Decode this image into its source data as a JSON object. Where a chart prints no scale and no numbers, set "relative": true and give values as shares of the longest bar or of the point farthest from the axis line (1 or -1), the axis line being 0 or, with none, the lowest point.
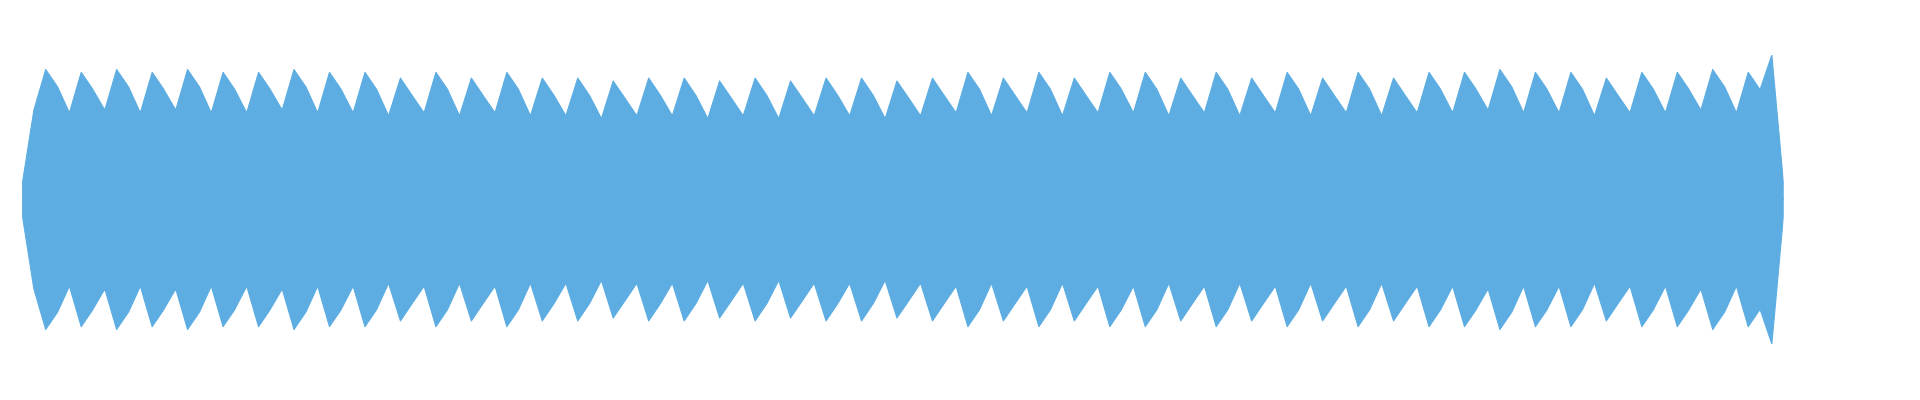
{
  "chart_data": {
    "type": "area",
    "relative": true,
    "ref_lines": [
      {
        "axis": "y",
        "value": 0,
        "color": "#5dade2"
      }
    ],
    "categories": [
      null,
      null,
      null,
      null,
      null,
      null,
      null,
      null,
      null,
      null,
      null,
      null,
      null,
      null,
      null,
      null,
      null,
      null,
      null,
      null,
      null,
      null,
      null,
      null,
      null,
      null,
      null,
      null,
      null,
      null,
      null,
      null,
      null,
      null,
      null,
      null,
      null,
      null,
      null,
      null,
      null,
      null,
      null,
      null,
      null,
      null,
      null,
      null,
      null,
      null,
      null,
      null,
      null,
      null,
      null,
      null,
      null,
      null,
      null,
      null,
      null,
      null,
      null,
      null,
      null,
      null,
      null,
      null,
      null,
      null,
      null,
      null,
      null,
      null,
      null,
      null,
      null,
      null,
      null,
      null,
      null,
      null,
      null,
      null,
      null,
      null,
      null,
      null,
      null,
      null,
      null,
      null,
      null,
      null,
      null,
      null,
      null,
      null,
      null,
      null,
      null,
      null,
      null,
      null,
      null,
      null,
      null,
      null,
      null,
      null,
      null,
      null,
      null,
      null,
      null,
      null,
      null,
      null,
      null,
      null,
      null,
      null,
      null,
      null,
      null,
      null,
      null,
      null,
      null,
      null,
      null,
      null,
      null,
      null,
      null,
      null,
      null,
      null,
      null,
      null,
      null,
      null,
      null,
      null,
      null,
      null,
      null,
      null,
      null,
      null
    ],
    "series": [
      {
        "color": "#5dade2",
        "values": [
          0.1,
          0.62,
          0.9,
          0.78,
          0.6,
          0.88,
          0.76,
          0.62,
          0.9,
          0.78,
          0.6,
          0.88,
          0.76,
          0.62,
          0.9,
          0.78,
          0.6,
          0.88,
          0.76,
          0.6,
          0.88,
          0.76,
          0.62,
          0.9,
          0.78,
          0.6,
          0.88,
          0.76,
          0.6,
          0.88,
          0.76,
          0.58,
          0.84,
          0.72,
          0.6,
          0.88,
          0.76,
          0.58,
          0.84,
          0.72,
          0.6,
          0.88,
          0.76,
          0.58,
          0.84,
          0.72,
          0.58,
          0.84,
          0.72,
          0.56,
          0.82,
          0.7,
          0.58,
          0.84,
          0.72,
          0.58,
          0.84,
          0.72,
          0.56,
          0.82,
          0.7,
          0.58,
          0.84,
          0.72,
          0.56,
          0.82,
          0.7,
          0.58,
          0.84,
          0.72,
          0.58,
          0.84,
          0.72,
          0.56,
          0.82,
          0.7,
          0.58,
          0.84,
          0.72,
          0.6,
          0.88,
          0.76,
          0.58,
          0.84,
          0.72,
          0.6,
          0.88,
          0.76,
          0.58,
          0.84,
          0.72,
          0.6,
          0.88,
          0.76,
          0.6,
          0.88,
          0.76,
          0.58,
          0.84,
          0.72,
          0.6,
          0.88,
          0.76,
          0.58,
          0.84,
          0.72,
          0.6,
          0.88,
          0.76,
          0.58,
          0.84,
          0.72,
          0.6,
          0.88,
          0.76,
          0.58,
          0.84,
          0.72,
          0.6,
          0.88,
          0.76,
          0.6,
          0.88,
          0.76,
          0.62,
          0.9,
          0.78,
          0.6,
          0.88,
          0.76,
          0.6,
          0.88,
          0.76,
          0.58,
          0.84,
          0.72,
          0.6,
          0.88,
          0.76,
          0.6,
          0.88,
          0.76,
          0.62,
          0.9,
          0.78,
          0.6,
          0.88,
          0.76,
          1.0,
          0.1
        ]
      },
      {
        "color": "#5dade2",
        "values": [
          -0.1,
          -0.62,
          -0.9,
          -0.78,
          -0.6,
          -0.88,
          -0.76,
          -0.62,
          -0.9,
          -0.78,
          -0.6,
          -0.88,
          -0.76,
          -0.62,
          -0.9,
          -0.78,
          -0.6,
          -0.88,
          -0.76,
          -0.6,
          -0.88,
          -0.76,
          -0.62,
          -0.9,
          -0.78,
          -0.6,
          -0.88,
          -0.76,
          -0.6,
          -0.88,
          -0.76,
          -0.58,
          -0.84,
          -0.72,
          -0.6,
          -0.88,
          -0.76,
          -0.58,
          -0.84,
          -0.72,
          -0.6,
          -0.88,
          -0.76,
          -0.58,
          -0.84,
          -0.72,
          -0.58,
          -0.84,
          -0.72,
          -0.56,
          -0.82,
          -0.7,
          -0.58,
          -0.84,
          -0.72,
          -0.58,
          -0.84,
          -0.72,
          -0.56,
          -0.82,
          -0.7,
          -0.58,
          -0.84,
          -0.72,
          -0.56,
          -0.82,
          -0.7,
          -0.58,
          -0.84,
          -0.72,
          -0.58,
          -0.84,
          -0.72,
          -0.56,
          -0.82,
          -0.7,
          -0.58,
          -0.84,
          -0.72,
          -0.6,
          -0.88,
          -0.76,
          -0.58,
          -0.84,
          -0.72,
          -0.6,
          -0.88,
          -0.76,
          -0.58,
          -0.84,
          -0.72,
          -0.6,
          -0.88,
          -0.76,
          -0.6,
          -0.88,
          -0.76,
          -0.58,
          -0.84,
          -0.72,
          -0.6,
          -0.88,
          -0.76,
          -0.58,
          -0.84,
          -0.72,
          -0.6,
          -0.88,
          -0.76,
          -0.58,
          -0.84,
          -0.72,
          -0.6,
          -0.88,
          -0.76,
          -0.58,
          -0.84,
          -0.72,
          -0.6,
          -0.88,
          -0.76,
          -0.6,
          -0.88,
          -0.76,
          -0.62,
          -0.9,
          -0.78,
          -0.6,
          -0.88,
          -0.76,
          -0.6,
          -0.88,
          -0.76,
          -0.58,
          -0.84,
          -0.72,
          -0.6,
          -0.88,
          -0.76,
          -0.6,
          -0.88,
          -0.76,
          -0.62,
          -0.9,
          -0.78,
          -0.6,
          -0.88,
          -0.76,
          -1.0,
          -0.1
        ]
      }
    ]
  }
}
